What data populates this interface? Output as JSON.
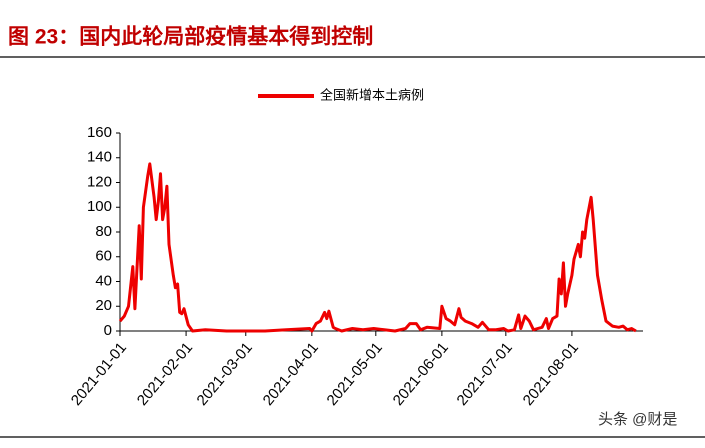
{
  "chart_data": {
    "type": "line",
    "title": "图 23：国内此轮局部疫情基本得到控制",
    "annotation": "头条 @财是",
    "legend": "top",
    "grid": false,
    "series": [
      {
        "name": "全国新增本土病例",
        "color": "#ee0000",
        "x": [
          "2021-01-01",
          "2021-01-03",
          "2021-01-05",
          "2021-01-07",
          "2021-01-08",
          "2021-01-10",
          "2021-01-11",
          "2021-01-12",
          "2021-01-14",
          "2021-01-15",
          "2021-01-17",
          "2021-01-18",
          "2021-01-19",
          "2021-01-20",
          "2021-01-21",
          "2021-01-22",
          "2021-01-23",
          "2021-01-24",
          "2021-01-26",
          "2021-01-27",
          "2021-01-28",
          "2021-01-29",
          "2021-01-30",
          "2021-01-31",
          "2021-02-02",
          "2021-02-04",
          "2021-02-10",
          "2021-02-20",
          "2021-02-28",
          "2021-03-10",
          "2021-03-20",
          "2021-03-31",
          "2021-04-01",
          "2021-04-03",
          "2021-04-05",
          "2021-04-07",
          "2021-04-08",
          "2021-04-09",
          "2021-04-11",
          "2021-04-12",
          "2021-04-15",
          "2021-04-20",
          "2021-04-25",
          "2021-04-30",
          "2021-05-05",
          "2021-05-10",
          "2021-05-15",
          "2021-05-17",
          "2021-05-20",
          "2021-05-22",
          "2021-05-25",
          "2021-05-31",
          "2021-06-01",
          "2021-06-03",
          "2021-06-05",
          "2021-06-07",
          "2021-06-09",
          "2021-06-10",
          "2021-06-12",
          "2021-06-15",
          "2021-06-18",
          "2021-06-20",
          "2021-06-23",
          "2021-06-26",
          "2021-06-30",
          "2021-07-02",
          "2021-07-05",
          "2021-07-07",
          "2021-07-08",
          "2021-07-10",
          "2021-07-12",
          "2021-07-14",
          "2021-07-16",
          "2021-07-18",
          "2021-07-20",
          "2021-07-21",
          "2021-07-23",
          "2021-07-25",
          "2021-07-26",
          "2021-07-27",
          "2021-07-28",
          "2021-07-29",
          "2021-07-30",
          "2021-08-01",
          "2021-08-02",
          "2021-08-04",
          "2021-08-05",
          "2021-08-06",
          "2021-08-07",
          "2021-08-08",
          "2021-08-10",
          "2021-08-11",
          "2021-08-13",
          "2021-08-15",
          "2021-08-17",
          "2021-08-20",
          "2021-08-23",
          "2021-08-25",
          "2021-08-27",
          "2021-08-29",
          "2021-08-31"
        ],
        "values": [
          8,
          12,
          20,
          52,
          18,
          85,
          42,
          100,
          125,
          135,
          108,
          90,
          105,
          127,
          90,
          100,
          117,
          70,
          45,
          35,
          38,
          15,
          14,
          18,
          5,
          0,
          1,
          0,
          0,
          0,
          1,
          2,
          0,
          6,
          8,
          15,
          10,
          16,
          3,
          2,
          0,
          2,
          1,
          2,
          1,
          0,
          2,
          6,
          6,
          1,
          3,
          2,
          20,
          10,
          8,
          5,
          18,
          11,
          8,
          6,
          3,
          7,
          1,
          1,
          2,
          0,
          1,
          13,
          2,
          12,
          8,
          1,
          2,
          3,
          10,
          2,
          10,
          12,
          42,
          30,
          55,
          20,
          30,
          45,
          58,
          70,
          60,
          80,
          75,
          90,
          108,
          90,
          45,
          25,
          8,
          4,
          3,
          4,
          1,
          2,
          0
        ]
      }
    ],
    "xlim": [
      "2021-01-01",
      "2021-09-01"
    ],
    "xticks": [
      "2021-01-01",
      "2021-02-01",
      "2021-03-01",
      "2021-04-01",
      "2021-05-01",
      "2021-06-01",
      "2021-07-01",
      "2021-08-01"
    ],
    "ylim": [
      0,
      160
    ],
    "yticks": [
      0,
      20,
      40,
      60,
      80,
      100,
      120,
      140,
      160
    ]
  }
}
